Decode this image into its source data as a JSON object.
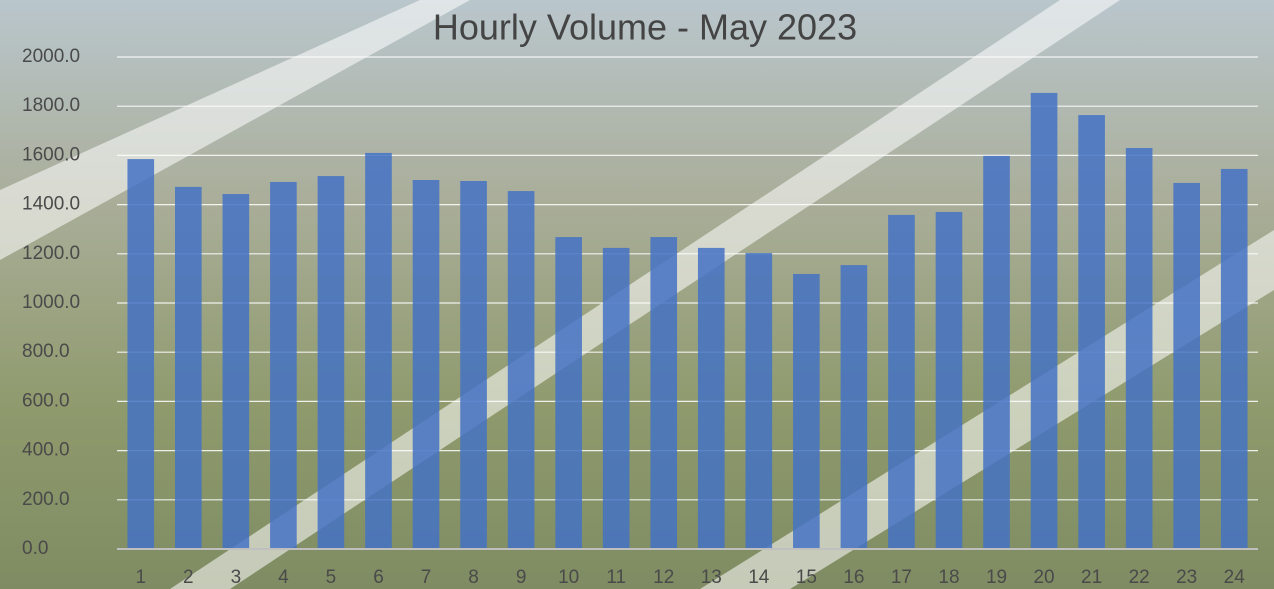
{
  "chart_data": {
    "type": "bar",
    "title": "Hourly Volume - May 2023",
    "categories": [
      "1",
      "2",
      "3",
      "4",
      "5",
      "6",
      "7",
      "8",
      "9",
      "10",
      "11",
      "12",
      "13",
      "14",
      "15",
      "16",
      "17",
      "18",
      "19",
      "20",
      "21",
      "22",
      "23",
      "24"
    ],
    "values": [
      1585,
      1472,
      1443,
      1492,
      1516,
      1610,
      1500,
      1496,
      1455,
      1268,
      1224,
      1268,
      1224,
      1203,
      1118,
      1154,
      1358,
      1370,
      1598,
      1854,
      1764,
      1630,
      1488,
      1545
    ],
    "color": "#4472c4",
    "ylim": [
      0,
      2000
    ],
    "yticks": [
      {
        "value": 0,
        "label": "0.0"
      },
      {
        "value": 200,
        "label": "200.0"
      },
      {
        "value": 400,
        "label": "400.0"
      },
      {
        "value": 600,
        "label": "600.0"
      },
      {
        "value": 800,
        "label": "800.0"
      },
      {
        "value": 1000,
        "label": "1000.0"
      },
      {
        "value": 1200,
        "label": "1200.0"
      },
      {
        "value": 1400,
        "label": "1400.0"
      },
      {
        "value": 1600,
        "label": "1600.0"
      },
      {
        "value": 1800,
        "label": "1800.0"
      },
      {
        "value": 2000,
        "label": "2000.0"
      }
    ],
    "grid": true
  }
}
